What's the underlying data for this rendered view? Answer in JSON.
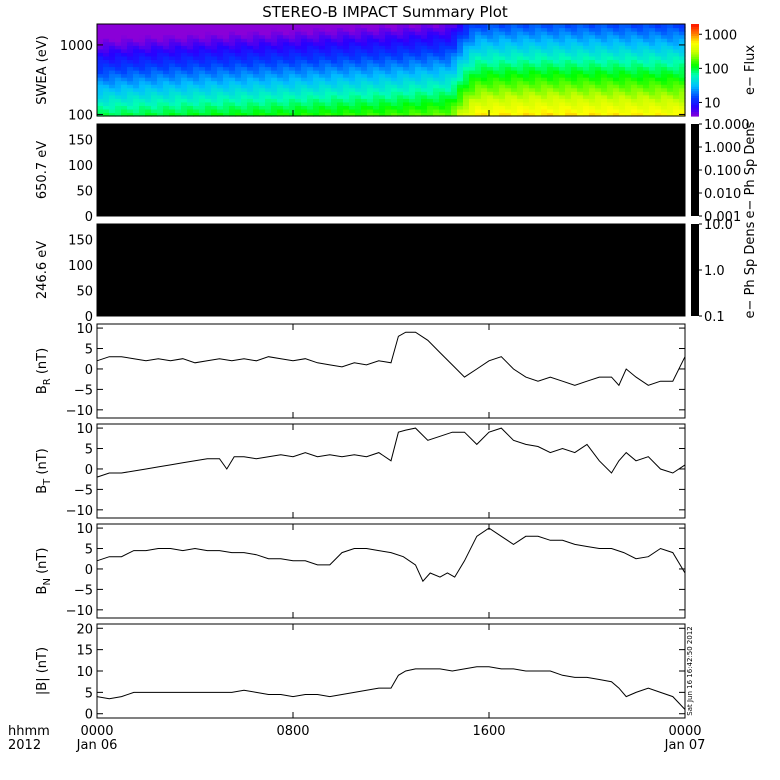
{
  "title": "STEREO-B IMPACT Summary Plot",
  "x_axis": {
    "row1_label": "hhmm",
    "row2_label": "2012",
    "ticks": [
      {
        "hour": 0,
        "time": "0000",
        "date": "Jan 06"
      },
      {
        "hour": 8,
        "time": "0800",
        "date": ""
      },
      {
        "hour": 16,
        "time": "1600",
        "date": ""
      },
      {
        "hour": 24,
        "time": "0000",
        "date": "Jan 07"
      }
    ],
    "range_hours": [
      0,
      24
    ]
  },
  "timestamp_note": "Sat Jun 16 16:42:50 2012",
  "chart_data": [
    {
      "type": "heatmap",
      "ylabel": "SWEA (eV)",
      "yscale": "log",
      "ylim": [
        95,
        2000
      ],
      "yticks": [
        {
          "v": 100,
          "label": "100"
        },
        {
          "v": 1000,
          "label": "1000"
        }
      ],
      "colorbar": {
        "label": "e− Flux",
        "scale": "log",
        "range": [
          4,
          2000
        ],
        "ticks": [
          {
            "v": 10,
            "label": "10"
          },
          {
            "v": 100,
            "label": "100"
          },
          {
            "v": 1000,
            "label": "1000"
          }
        ]
      },
      "flux_base_by_hour": {
        "x": [
          0,
          4,
          8,
          12,
          14.5,
          15.5,
          18,
          21,
          24
        ],
        "flux_at_100eV": [
          90,
          110,
          130,
          160,
          200,
          600,
          650,
          620,
          560
        ]
      },
      "colors": {
        "low": "#8a00d8",
        "mid": "#00ff00",
        "high": "#ff3000"
      }
    },
    {
      "type": "heatmap",
      "ylabel": "650.7 eV",
      "ylim": [
        0,
        180
      ],
      "yticks": [
        {
          "v": 0,
          "label": "0"
        },
        {
          "v": 50,
          "label": "50"
        },
        {
          "v": 100,
          "label": "100"
        },
        {
          "v": 150,
          "label": "150"
        }
      ],
      "colorbar": {
        "label": "e− Ph Sp Dens",
        "scale": "log",
        "range": [
          0.001,
          10
        ],
        "ticks": [
          {
            "v": 10,
            "label": "10.000"
          },
          {
            "v": 1,
            "label": "1.000"
          },
          {
            "v": 0.1,
            "label": "0.100"
          },
          {
            "v": 0.01,
            "label": "0.010"
          },
          {
            "v": 0.001,
            "label": "0.001"
          }
        ]
      },
      "fill": "#000000"
    },
    {
      "type": "heatmap",
      "ylabel": "246.6 eV",
      "ylim": [
        0,
        180
      ],
      "yticks": [
        {
          "v": 0,
          "label": "0"
        },
        {
          "v": 50,
          "label": "50"
        },
        {
          "v": 100,
          "label": "100"
        },
        {
          "v": 150,
          "label": "150"
        }
      ],
      "colorbar": {
        "label": "e− Ph Sp Dens",
        "scale": "log",
        "range": [
          0.1,
          10
        ],
        "ticks": [
          {
            "v": 10,
            "label": "10.0"
          },
          {
            "v": 1,
            "label": "1.0"
          },
          {
            "v": 0.1,
            "label": "0.1"
          }
        ]
      },
      "fill": "#000000"
    },
    {
      "type": "line",
      "ylabel": "B",
      "ylabel_sub": "R",
      "ylabel_unit": " (nT)",
      "ylim": [
        -12,
        11
      ],
      "yticks": [
        {
          "v": 10,
          "label": "10"
        },
        {
          "v": 5,
          "label": "5"
        },
        {
          "v": 0,
          "label": "0"
        },
        {
          "v": -5,
          "label": "−5"
        },
        {
          "v": -10,
          "label": "−10"
        }
      ],
      "x": [
        0,
        0.5,
        1,
        1.5,
        2,
        2.5,
        3,
        3.5,
        4,
        4.5,
        5,
        5.5,
        6,
        6.5,
        7,
        7.5,
        8,
        8.5,
        9,
        9.5,
        10,
        10.5,
        11,
        11.5,
        12,
        12.3,
        12.6,
        13,
        13.5,
        14,
        14.5,
        15,
        15.5,
        16,
        16.5,
        17,
        17.5,
        18,
        18.5,
        19,
        19.5,
        20,
        20.5,
        21,
        21.3,
        21.6,
        22,
        22.5,
        23,
        23.5,
        24
      ],
      "y": [
        2,
        3,
        3,
        2.5,
        2,
        2.5,
        2,
        2.5,
        1.5,
        2,
        2.5,
        2,
        2.5,
        2,
        3,
        2.5,
        2,
        2.5,
        1.5,
        1,
        0.5,
        1.5,
        1,
        2,
        1.5,
        8,
        9,
        9,
        7,
        4,
        1,
        -2,
        0,
        2,
        3,
        0,
        -2,
        -3,
        -2,
        -3,
        -4,
        -3,
        -2,
        -2,
        -4,
        0,
        -2,
        -4,
        -3,
        -3,
        3
      ]
    },
    {
      "type": "line",
      "ylabel": "B",
      "ylabel_sub": "T",
      "ylabel_unit": " (nT)",
      "ylim": [
        -12,
        11
      ],
      "yticks": [
        {
          "v": 10,
          "label": "10"
        },
        {
          "v": 5,
          "label": "5"
        },
        {
          "v": 0,
          "label": "0"
        },
        {
          "v": -5,
          "label": "−5"
        },
        {
          "v": -10,
          "label": "−10"
        }
      ],
      "x": [
        0,
        0.5,
        1,
        1.5,
        2,
        2.5,
        3,
        3.5,
        4,
        4.5,
        5,
        5.3,
        5.6,
        6,
        6.5,
        7,
        7.5,
        8,
        8.5,
        9,
        9.5,
        10,
        10.5,
        11,
        11.5,
        12,
        12.3,
        12.6,
        13,
        13.5,
        14,
        14.5,
        15,
        15.5,
        16,
        16.5,
        17,
        17.5,
        18,
        18.5,
        19,
        19.5,
        20,
        20.5,
        21,
        21.3,
        21.6,
        22,
        22.5,
        23,
        23.5,
        24
      ],
      "y": [
        -2,
        -1,
        -1,
        -0.5,
        0,
        0.5,
        1,
        1.5,
        2,
        2.5,
        2.5,
        0,
        3,
        3,
        2.5,
        3,
        3.5,
        3,
        4,
        3,
        3.5,
        3,
        3.5,
        3,
        4,
        2,
        9,
        9.5,
        10,
        7,
        8,
        9,
        9,
        6,
        9,
        10,
        7,
        6,
        5.5,
        4,
        5,
        4,
        6,
        2,
        -1,
        2,
        4,
        2,
        3,
        0,
        -1,
        1
      ]
    },
    {
      "type": "line",
      "ylabel": "B",
      "ylabel_sub": "N",
      "ylabel_unit": " (nT)",
      "ylim": [
        -12,
        11
      ],
      "yticks": [
        {
          "v": 10,
          "label": "10"
        },
        {
          "v": 5,
          "label": "5"
        },
        {
          "v": 0,
          "label": "0"
        },
        {
          "v": -5,
          "label": "−5"
        },
        {
          "v": -10,
          "label": "−10"
        }
      ],
      "x": [
        0,
        0.5,
        1,
        1.5,
        2,
        2.5,
        3,
        3.5,
        4,
        4.5,
        5,
        5.5,
        6,
        6.5,
        7,
        7.5,
        8,
        8.5,
        9,
        9.5,
        10,
        10.5,
        11,
        11.5,
        12,
        12.5,
        13,
        13.3,
        13.6,
        14,
        14.3,
        14.6,
        15,
        15.5,
        16,
        16.5,
        17,
        17.5,
        18,
        18.5,
        19,
        19.5,
        20,
        20.5,
        21,
        21.5,
        22,
        22.5,
        23,
        23.5,
        24
      ],
      "y": [
        2,
        3,
        3,
        4.5,
        4.5,
        5,
        5,
        4.5,
        5,
        4.5,
        4.5,
        4,
        4,
        3.5,
        2.5,
        2.5,
        2,
        2,
        1,
        1,
        4,
        5,
        5,
        4.5,
        4,
        3,
        1,
        -3,
        -1,
        -2,
        -1,
        -2,
        2,
        8,
        10,
        8,
        6,
        8,
        8,
        7,
        7,
        6,
        5.5,
        5,
        5,
        4,
        2.5,
        3,
        5,
        4,
        -1
      ]
    },
    {
      "type": "line",
      "ylabel": "|B| (nT)",
      "ylim": [
        -1,
        21
      ],
      "yticks": [
        {
          "v": 20,
          "label": "20"
        },
        {
          "v": 15,
          "label": "15"
        },
        {
          "v": 10,
          "label": "10"
        },
        {
          "v": 5,
          "label": "5"
        },
        {
          "v": 0,
          "label": "0"
        }
      ],
      "x": [
        0,
        0.5,
        1,
        1.5,
        2,
        2.5,
        3,
        3.5,
        4,
        4.5,
        5,
        5.5,
        6,
        6.5,
        7,
        7.5,
        8,
        8.5,
        9,
        9.5,
        10,
        10.5,
        11,
        11.5,
        12,
        12.3,
        12.6,
        13,
        13.5,
        14,
        14.5,
        15,
        15.5,
        16,
        16.5,
        17,
        17.5,
        18,
        18.5,
        19,
        19.5,
        20,
        20.5,
        21,
        21.3,
        21.6,
        22,
        22.5,
        23,
        23.5,
        24
      ],
      "y": [
        4,
        3.5,
        4,
        5,
        5,
        5,
        5,
        5,
        5,
        5,
        5,
        5,
        5.5,
        5,
        4.5,
        4.5,
        4,
        4.5,
        4.5,
        4,
        4.5,
        5,
        5.5,
        6,
        6,
        9,
        10,
        10.5,
        10.5,
        10.5,
        10,
        10.5,
        11,
        11,
        10.5,
        10.5,
        10,
        10,
        10,
        9,
        8.5,
        8.5,
        8,
        7.5,
        6,
        4,
        5,
        6,
        5,
        4,
        1
      ]
    }
  ]
}
